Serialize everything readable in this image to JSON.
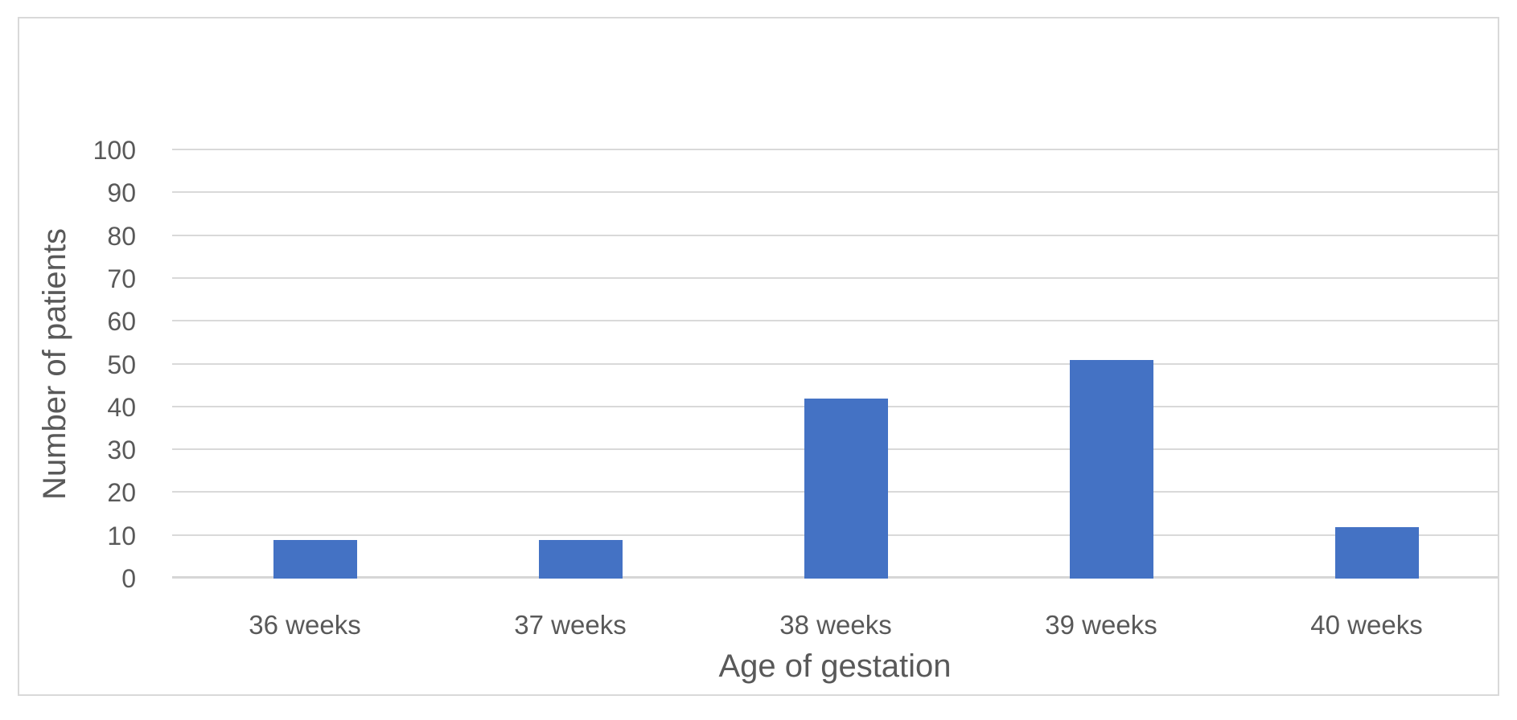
{
  "chart_data": {
    "type": "bar",
    "title": "",
    "categories": [
      "36 weeks",
      "37 weeks",
      "38 weeks",
      "39 weeks",
      "40 weeks"
    ],
    "values": [
      9,
      9,
      42,
      51,
      12
    ],
    "xlabel": "Age of gestation",
    "ylabel": "Number of patients",
    "ylim": [
      0,
      100
    ],
    "yticks": [
      0,
      10,
      20,
      30,
      40,
      50,
      60,
      70,
      80,
      90,
      100
    ],
    "grid": true,
    "legend": false,
    "colors": {
      "bar": "#4472C4",
      "gridline": "#D9D9D9",
      "axis_line": "#D6D6D6",
      "axis_text": "#595959",
      "chart_border": "#D9D9D9",
      "background": "#FFFFFF"
    }
  }
}
